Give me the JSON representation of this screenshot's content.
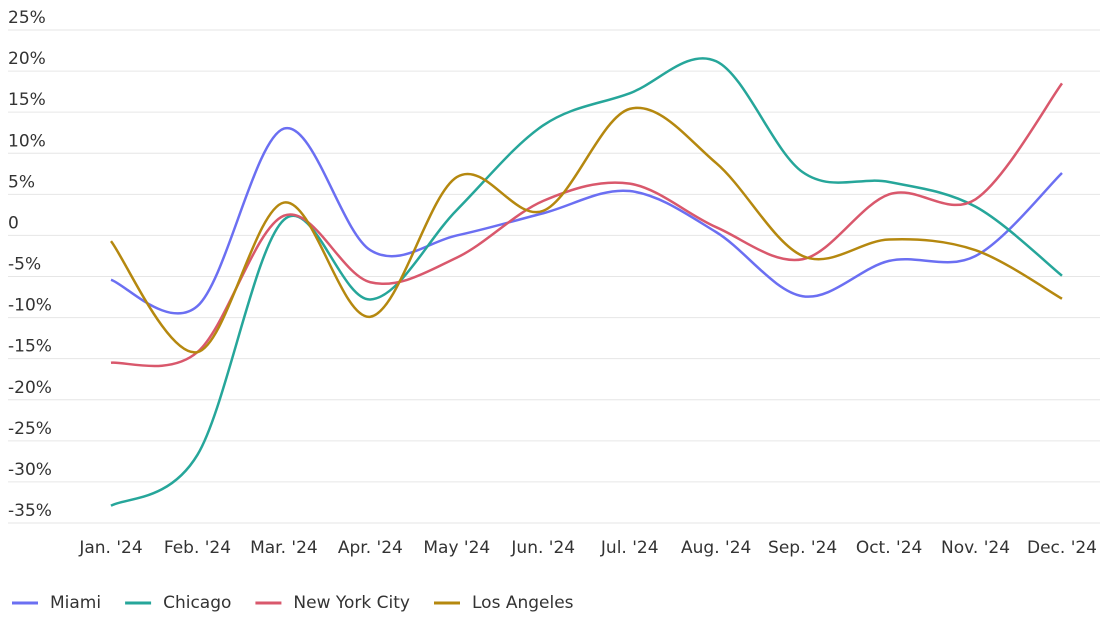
{
  "chart_data": {
    "type": "line",
    "categories": [
      "Jan. '24",
      "Feb. '24",
      "Mar. '24",
      "Apr. '24",
      "May '24",
      "Jun. '24",
      "Jul. '24",
      "Aug. '24",
      "Sep. '24",
      "Oct. '24",
      "Nov. '24",
      "Dec. '24"
    ],
    "series": [
      {
        "name": "Miami",
        "color": "#6b6ff2",
        "values": [
          -5.4,
          -8.6,
          13,
          -1.8,
          0,
          2.7,
          5.4,
          0.4,
          -7.4,
          -3.1,
          -2.5,
          7.6
        ]
      },
      {
        "name": "Chicago",
        "color": "#26a69a",
        "values": [
          -32.9,
          -26.7,
          1.9,
          -7.8,
          3.1,
          13.4,
          17.3,
          21.2,
          7.7,
          6.5,
          3.5,
          -4.9
        ]
      },
      {
        "name": "New York City",
        "color": "#d9586c",
        "values": [
          -15.5,
          -14.2,
          2.4,
          -5.7,
          -2.7,
          4.2,
          6.3,
          1,
          -2.9,
          5,
          4.4,
          18.5
        ]
      },
      {
        "name": "Los Angeles",
        "color": "#b5880f",
        "values": [
          -0.7,
          -14.2,
          4,
          -9.9,
          7.1,
          3,
          15.4,
          8.8,
          -2.5,
          -0.5,
          -1.8,
          -7.7
        ]
      }
    ],
    "ylim": [
      -35,
      25
    ],
    "yticks": [
      {
        "value": 25,
        "label": "25%"
      },
      {
        "value": 20,
        "label": "20%"
      },
      {
        "value": 15,
        "label": "15%"
      },
      {
        "value": 10,
        "label": "10%"
      },
      {
        "value": 5,
        "label": "5%"
      },
      0,
      {
        "value": -5,
        "label": "-5%"
      },
      {
        "value": -10,
        "label": "-10%"
      },
      {
        "value": -15,
        "label": "-15%"
      },
      {
        "value": -20,
        "label": "-20%"
      },
      {
        "value": -25,
        "label": "-25%"
      },
      {
        "value": -30,
        "label": "-30%"
      },
      {
        "value": -35,
        "label": "-35%"
      }
    ],
    "grid": true,
    "legend": "bottom"
  }
}
